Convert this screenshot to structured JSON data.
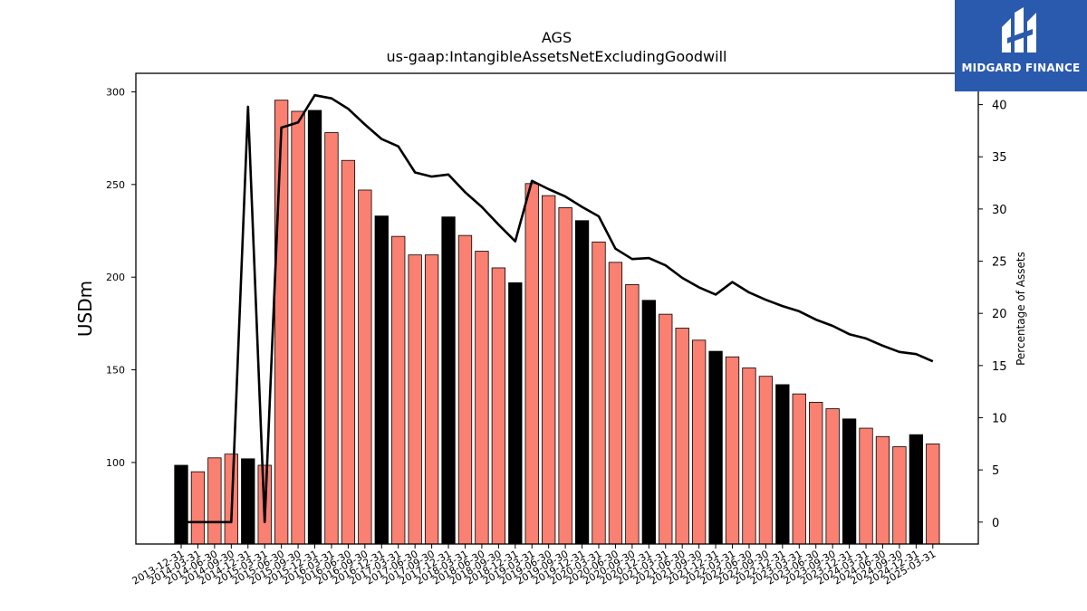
{
  "chart_data": {
    "type": "bar",
    "title": "AGS",
    "subtitle": "us-gaap:IntangibleAssetsNetExcludingGoodwill",
    "ylabel": "USDm",
    "y2label": "Percentage of Assets",
    "ylim": [
      56,
      310
    ],
    "y2lim": [
      -2.1,
      43
    ],
    "yticks": [
      100,
      150,
      200,
      250,
      300
    ],
    "y2ticks": [
      0,
      5,
      10,
      15,
      20,
      25,
      30,
      35,
      40
    ],
    "categories": [
      "2013-12-31",
      "2014-03-31",
      "2014-06-30",
      "2014-09-30",
      "2014-12-31",
      "2015-03-31",
      "2015-06-30",
      "2015-09-30",
      "2015-12-31",
      "2016-03-31",
      "2016-06-30",
      "2016-09-30",
      "2016-12-31",
      "2017-03-31",
      "2017-06-30",
      "2017-09-30",
      "2017-12-31",
      "2018-03-31",
      "2018-06-30",
      "2018-09-30",
      "2018-12-31",
      "2019-03-31",
      "2019-06-30",
      "2019-09-30",
      "2019-12-31",
      "2020-03-31",
      "2020-06-30",
      "2020-09-30",
      "2020-12-31",
      "2021-03-31",
      "2021-06-30",
      "2021-09-30",
      "2021-12-31",
      "2022-03-31",
      "2022-06-30",
      "2022-09-30",
      "2022-12-31",
      "2023-03-31",
      "2023-06-30",
      "2023-09-30",
      "2023-12-31",
      "2024-03-31",
      "2024-06-30",
      "2024-09-30",
      "2024-12-31",
      "2025-03-31"
    ],
    "series": [
      {
        "type": "bar",
        "values": [
          98.5,
          95,
          102.5,
          104.5,
          102,
          98.5,
          295.5,
          289.5,
          290,
          278,
          263,
          247,
          233,
          222,
          212,
          212,
          232.5,
          222.5,
          214,
          205,
          197,
          250.5,
          244,
          237.5,
          230.5,
          219,
          208,
          196,
          187.5,
          180,
          172.5,
          166,
          160,
          157,
          151,
          146.5,
          142,
          137,
          132.5,
          129,
          123.5,
          118.5,
          114,
          108.5,
          115,
          110
        ]
      },
      {
        "type": "line",
        "axis": "right",
        "values": [
          0,
          0,
          0,
          0,
          39.8,
          0,
          37.8,
          38.3,
          40.9,
          40.6,
          39.6,
          38.1,
          36.7,
          36.0,
          33.5,
          33.1,
          33.3,
          31.6,
          30.2,
          28.5,
          26.9,
          32.7,
          31.9,
          31.2,
          30.2,
          29.3,
          26.2,
          25.2,
          25.3,
          24.6,
          23.4,
          22.5,
          21.8,
          23.0,
          22.0,
          21.3,
          20.7,
          20.2,
          19.4,
          18.8,
          18.0,
          17.6,
          16.9,
          16.3,
          16.1,
          15.4
        ]
      }
    ],
    "bar_colors": {
      "year_end": "#000000",
      "quarter": "#fa8072"
    },
    "line_color": "#000000",
    "grid": false,
    "legend": "none"
  },
  "logo": {
    "text": "MIDGARD FINANCE",
    "color": "#2a5aad"
  }
}
